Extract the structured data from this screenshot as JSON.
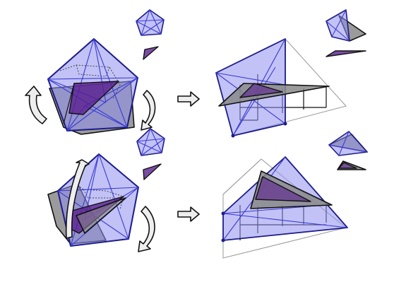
{
  "colors": {
    "background": "#ffffff",
    "polygon_fill": "#8f8ff0",
    "polygon_stroke": "#1c1c8c",
    "edge_blue": "#3b3bd6",
    "gray_shape": "#8a8a8a",
    "purple_shape": "#5a1f8f",
    "hidden_line": "#555555",
    "arrow_fill": "#eeeeee",
    "vertex": "#1c1c8c"
  },
  "icons": {
    "rotate_arrow": "curved-rotation-arrow",
    "transform_arrow": "right-arrow"
  }
}
